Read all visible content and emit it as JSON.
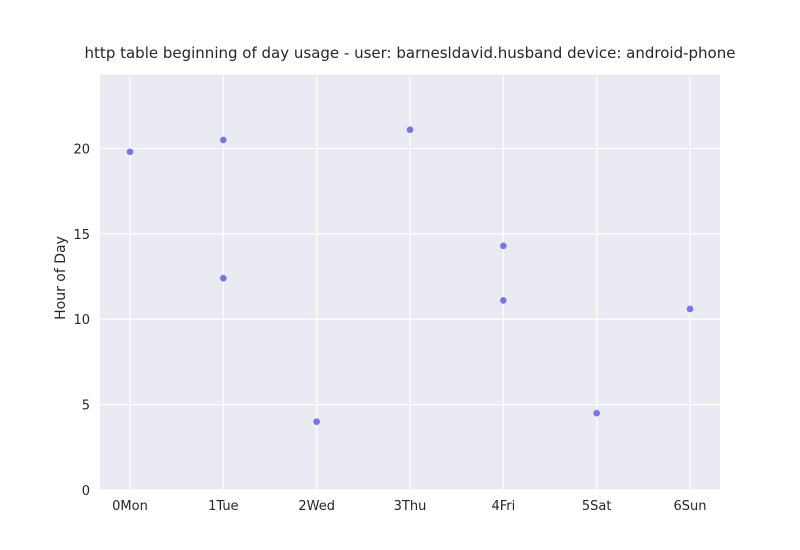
{
  "chart_data": {
    "type": "scatter",
    "title": "http table beginning of day usage -  user: barnesldavid.husband device: android-phone",
    "xlabel": "",
    "ylabel": "Hour of Day",
    "categories": [
      "0Mon",
      "1Tue",
      "2Wed",
      "3Thu",
      "4Fri",
      "5Sat",
      "6Sun"
    ],
    "ylim": [
      0,
      24.3
    ],
    "yticks": [
      0,
      5,
      10,
      15,
      20
    ],
    "grid": true,
    "point_color": "#6f6fe8",
    "background_color": "#eaeaf2",
    "points": [
      {
        "x": "0Mon",
        "y": 19.8
      },
      {
        "x": "1Tue",
        "y": 20.5
      },
      {
        "x": "1Tue",
        "y": 12.4
      },
      {
        "x": "2Wed",
        "y": 4.0
      },
      {
        "x": "3Thu",
        "y": 21.1
      },
      {
        "x": "4Fri",
        "y": 14.3
      },
      {
        "x": "4Fri",
        "y": 11.1
      },
      {
        "x": "5Sat",
        "y": 4.5
      },
      {
        "x": "6Sun",
        "y": 10.6
      }
    ]
  }
}
